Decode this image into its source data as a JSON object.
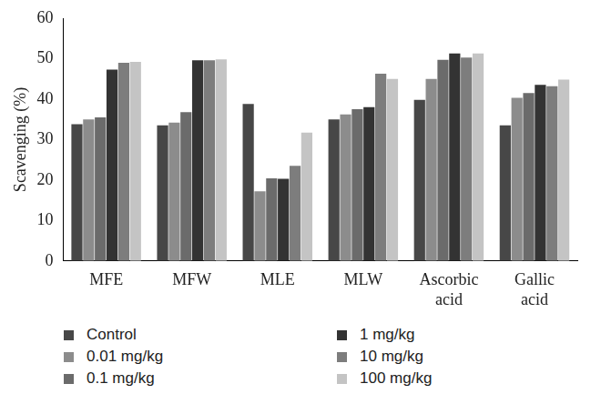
{
  "chart_data": {
    "type": "bar",
    "y_label": "Scavenging (%)",
    "categories": [
      "MFE",
      "MFW",
      "MLE",
      "MLW",
      "Ascorbic acid",
      "Gallic acid"
    ],
    "series": [
      {
        "name": "Control",
        "color": "#474747",
        "values": [
          33.8,
          33.5,
          38.8,
          35.0,
          39.8,
          33.5
        ]
      },
      {
        "name": "0.01 mg/kg",
        "color": "#8c8c8c",
        "values": [
          35.0,
          34.2,
          17.2,
          36.2,
          45.0,
          40.3
        ]
      },
      {
        "name": "0.1 mg/kg",
        "color": "#6b6b6b",
        "values": [
          35.5,
          36.8,
          20.4,
          37.5,
          49.7,
          41.5
        ]
      },
      {
        "name": "1 mg/kg",
        "color": "#333333",
        "values": [
          47.3,
          49.6,
          20.3,
          38.0,
          51.3,
          43.5
        ]
      },
      {
        "name": "10 mg/kg",
        "color": "#7d7d7d",
        "values": [
          49.0,
          49.6,
          23.5,
          46.3,
          50.3,
          43.2
        ]
      },
      {
        "name": "100 mg/kg",
        "color": "#c4c4c4",
        "values": [
          49.2,
          49.8,
          31.7,
          45.0,
          51.3,
          44.8
        ]
      }
    ],
    "ylim": [
      0,
      60
    ],
    "yticks": [
      0,
      10,
      20,
      30,
      40,
      50,
      60
    ],
    "grid": false,
    "legend": "bottom"
  }
}
